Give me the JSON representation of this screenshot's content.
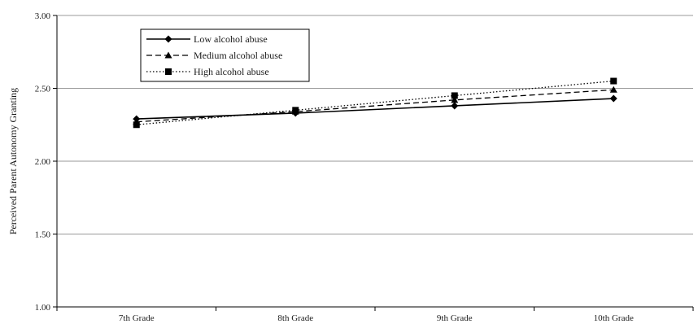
{
  "chart_data": {
    "type": "line",
    "categories": [
      "7th Grade",
      "8th Grade",
      "9th Grade",
      "10th Grade"
    ],
    "ylabel": "Perceived Parent Autonomy Granting",
    "xlabel": "",
    "ylim": [
      1.0,
      3.0
    ],
    "yticks": [
      "1.00",
      "1.50",
      "2.00",
      "2.50",
      "3.00"
    ],
    "grid": true,
    "legend_position": "top-left",
    "series": [
      {
        "name": "Low alcohol abuse",
        "values": [
          2.29,
          2.33,
          2.38,
          2.43
        ],
        "marker": "diamond",
        "dash": "solid",
        "color": "#000000"
      },
      {
        "name": "Medium alcohol abuse",
        "values": [
          2.27,
          2.34,
          2.42,
          2.49
        ],
        "marker": "triangle",
        "dash": "dashed",
        "color": "#000000"
      },
      {
        "name": "High alcohol abuse",
        "values": [
          2.25,
          2.35,
          2.45,
          2.55
        ],
        "marker": "square",
        "dash": "dotted",
        "color": "#000000"
      }
    ]
  }
}
